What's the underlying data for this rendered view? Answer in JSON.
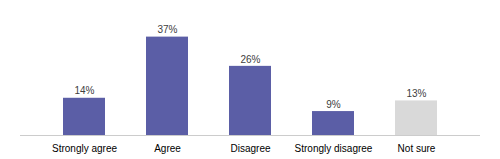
{
  "chart_data": {
    "type": "bar",
    "categories": [
      "Strongly agree",
      "Agree",
      "Disagree",
      "Strongly disagree",
      "Not sure"
    ],
    "values": [
      14,
      37,
      26,
      9,
      13
    ],
    "colors": [
      "#5b5ea6",
      "#5b5ea6",
      "#5b5ea6",
      "#5b5ea6",
      "#d9d9d9"
    ],
    "ylim": [
      0,
      44
    ],
    "data_labels": true,
    "value_labels": [
      "14%",
      "37%",
      "26%",
      "9%",
      "13%"
    ],
    "tick_labels": "x",
    "grid": false
  }
}
